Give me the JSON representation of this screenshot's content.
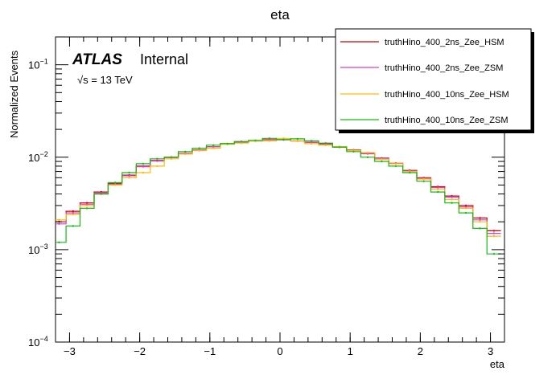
{
  "chart_data": {
    "type": "line",
    "title": "eta",
    "xlabel": "eta",
    "ylabel": "Normalized Events",
    "xlim": [
      -3.2,
      3.2
    ],
    "ylim": [
      0.0001,
      0.2
    ],
    "y_scale": "log",
    "grid": false,
    "legend_position": "top-right",
    "x_ticks": [
      {
        "v": -3,
        "label": "−3"
      },
      {
        "v": -2,
        "label": "−2"
      },
      {
        "v": -1,
        "label": "−1"
      },
      {
        "v": 0,
        "label": "0"
      },
      {
        "v": 1,
        "label": "1"
      },
      {
        "v": 2,
        "label": "2"
      },
      {
        "v": 3,
        "label": "3"
      }
    ],
    "y_ticks": [
      {
        "v": 0.0001,
        "base": "10",
        "exp": "−4"
      },
      {
        "v": 0.001,
        "base": "10",
        "exp": "−3"
      },
      {
        "v": 0.01,
        "base": "10",
        "exp": "−2"
      },
      {
        "v": 0.1,
        "base": "10",
        "exp": "−1"
      }
    ],
    "annotations": {
      "experiment": "ATLAS",
      "status": "Internal",
      "energy": "√s = 13 TeV"
    },
    "x": [
      -3.15,
      -2.95,
      -2.75,
      -2.55,
      -2.35,
      -2.15,
      -1.95,
      -1.75,
      -1.55,
      -1.35,
      -1.15,
      -0.95,
      -0.75,
      -0.55,
      -0.35,
      -0.15,
      0.05,
      0.25,
      0.45,
      0.65,
      0.85,
      1.05,
      1.25,
      1.45,
      1.65,
      1.85,
      2.05,
      2.25,
      2.45,
      2.65,
      2.85,
      3.05
    ],
    "series": [
      {
        "name": "truthHino_400_2ns_Zee_HSM",
        "color": "#cc0000",
        "values": [
          0.002,
          0.0026,
          0.0032,
          0.0042,
          0.0052,
          0.0064,
          0.008,
          0.0092,
          0.01,
          0.011,
          0.012,
          0.013,
          0.014,
          0.0145,
          0.015,
          0.0155,
          0.0155,
          0.015,
          0.0145,
          0.014,
          0.013,
          0.012,
          0.011,
          0.0098,
          0.0086,
          0.0072,
          0.006,
          0.0048,
          0.0038,
          0.003,
          0.0022,
          0.0016
        ]
      },
      {
        "name": "truthHino_400_2ns_Zee_ZSM",
        "color": "#d53fd5",
        "values": [
          0.0019,
          0.0025,
          0.0031,
          0.0041,
          0.0051,
          0.0063,
          0.0079,
          0.0091,
          0.0099,
          0.011,
          0.012,
          0.013,
          0.0139,
          0.0145,
          0.015,
          0.0154,
          0.0154,
          0.015,
          0.0144,
          0.0138,
          0.0129,
          0.0119,
          0.0109,
          0.0097,
          0.0085,
          0.0071,
          0.0059,
          0.0047,
          0.0037,
          0.0029,
          0.0021,
          0.0015
        ]
      },
      {
        "name": "truthHino_400_10ns_Zee_HSM",
        "color": "#ffbb00",
        "values": [
          0.0021,
          0.0024,
          0.003,
          0.004,
          0.005,
          0.006,
          0.0068,
          0.008,
          0.0096,
          0.0108,
          0.0118,
          0.0125,
          0.0138,
          0.0142,
          0.015,
          0.015,
          0.016,
          0.015,
          0.014,
          0.0135,
          0.013,
          0.0118,
          0.0112,
          0.0095,
          0.0085,
          0.007,
          0.0058,
          0.0045,
          0.0035,
          0.0028,
          0.002,
          0.0014
        ]
      },
      {
        "name": "truthHino_400_10ns_Zee_ZSM",
        "color": "#11bb11",
        "values": [
          0.0012,
          0.0018,
          0.0028,
          0.004,
          0.0053,
          0.0068,
          0.0085,
          0.0096,
          0.01,
          0.0115,
          0.0125,
          0.0135,
          0.014,
          0.0148,
          0.0152,
          0.016,
          0.0155,
          0.0158,
          0.015,
          0.0142,
          0.0128,
          0.0115,
          0.01,
          0.009,
          0.008,
          0.0068,
          0.0055,
          0.0042,
          0.0032,
          0.0025,
          0.0017,
          0.0009
        ]
      }
    ]
  }
}
